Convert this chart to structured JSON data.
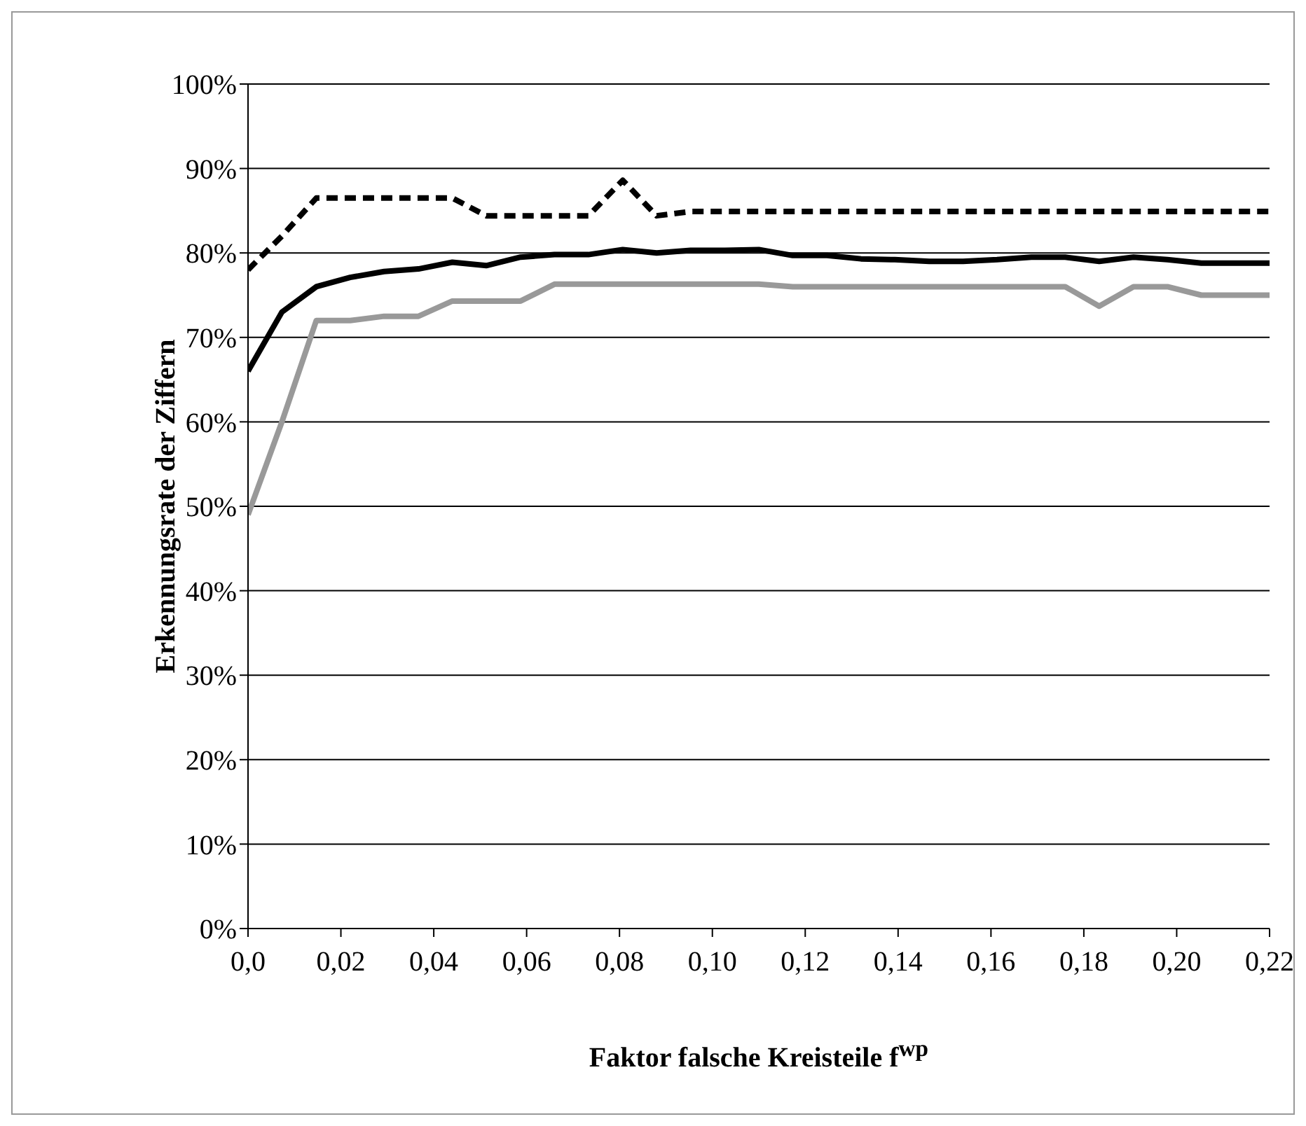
{
  "chart_data": {
    "type": "line",
    "xlabel": "Faktor falsche Kreisteile f$^{wp}$",
    "ylabel": "Erkennungsrate der Ziffern",
    "x": [
      0,
      0.0073,
      0.0147,
      0.022,
      0.0293,
      0.0367,
      0.044,
      0.0513,
      0.0587,
      0.066,
      0.0733,
      0.0807,
      0.088,
      0.0953,
      0.1027,
      0.11,
      0.1173,
      0.1247,
      0.132,
      0.1393,
      0.1467,
      0.154,
      0.1613,
      0.1687,
      0.176,
      0.1833,
      0.1907,
      0.198,
      0.2053,
      0.2127,
      0.22
    ],
    "series": [
      {
        "color": "#000000",
        "line_style": "dashed",
        "values": [
          78,
          82,
          86.5,
          86.5,
          86.5,
          86.5,
          86.5,
          84.4,
          84.4,
          84.4,
          84.4,
          88.6,
          84.4,
          84.9,
          84.9,
          84.9,
          84.9,
          84.9,
          84.9,
          84.9,
          84.9,
          84.9,
          84.9,
          84.9,
          84.9,
          84.9,
          84.9,
          84.9,
          84.9,
          84.9,
          84.9
        ]
      },
      {
        "color": "#000000",
        "line_style": "solid",
        "values": [
          66,
          73,
          76,
          77.1,
          77.8,
          78.1,
          78.9,
          78.5,
          79.5,
          79.8,
          79.8,
          80.4,
          80,
          80.3,
          80.3,
          80.4,
          79.7,
          79.7,
          79.3,
          79.2,
          79,
          79,
          79.2,
          79.5,
          79.5,
          79,
          79.5,
          79.2,
          78.8,
          78.8,
          78.8
        ]
      },
      {
        "color": "#999999",
        "line_style": "solid",
        "values": [
          49,
          60,
          72,
          72,
          72.5,
          72.5,
          74.3,
          74.3,
          74.3,
          76.3,
          76.3,
          76.3,
          76.3,
          76.3,
          76.3,
          76.3,
          76,
          76,
          76,
          76,
          76,
          76,
          76,
          76,
          76,
          73.7,
          76,
          76,
          75,
          75,
          75
        ]
      }
    ],
    "xlim": [
      0,
      0.22
    ],
    "xticks": [
      {
        "value": 0,
        "label": "0,0"
      },
      {
        "value": 0.02,
        "label": "0,02"
      },
      {
        "value": 0.04,
        "label": "0,04"
      },
      {
        "value": 0.06,
        "label": "0,06"
      },
      {
        "value": 0.08,
        "label": "0,08"
      },
      {
        "value": 0.1,
        "label": "0,10"
      },
      {
        "value": 0.12,
        "label": "0,12"
      },
      {
        "value": 0.14,
        "label": "0,14"
      },
      {
        "value": 0.16,
        "label": "0,16"
      },
      {
        "value": 0.18,
        "label": "0,18"
      },
      {
        "value": 0.2,
        "label": "0,20"
      },
      {
        "value": 0.22,
        "label": "0,22"
      }
    ],
    "ylim": [
      0,
      100
    ],
    "yticks": [
      {
        "value": 0,
        "label": "0%"
      },
      {
        "value": 10,
        "label": "10%"
      },
      {
        "value": 20,
        "label": "20%"
      },
      {
        "value": 30,
        "label": "30%"
      },
      {
        "value": 40,
        "label": "40%"
      },
      {
        "value": 50,
        "label": "50%"
      },
      {
        "value": 60,
        "label": "60%"
      },
      {
        "value": 70,
        "label": "70%"
      },
      {
        "value": 80,
        "label": "80%"
      },
      {
        "value": 90,
        "label": "90%"
      },
      {
        "value": 100,
        "label": "100%"
      }
    ],
    "grid": "y",
    "legend": false,
    "marker": "none"
  }
}
